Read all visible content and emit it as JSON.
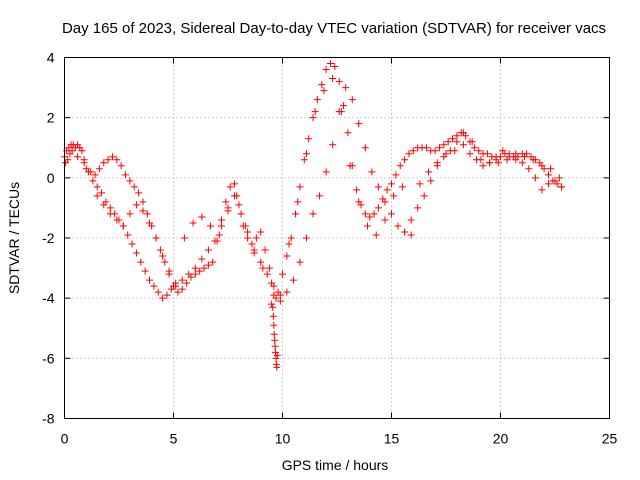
{
  "chart_data": {
    "type": "scatter",
    "title": "Day 165 of 2023, Sidereal Day-to-day VTEC variation (SDTVAR) for receiver vacs",
    "xlabel": "GPS time / hours",
    "ylabel": "SDTVAR / TECUs",
    "xlim": [
      0,
      25
    ],
    "ylim": [
      -8,
      4
    ],
    "xticks": [
      0,
      5,
      10,
      15,
      20,
      25
    ],
    "yticks": [
      -8,
      -6,
      -4,
      -2,
      0,
      2,
      4
    ],
    "xtick_labels": [
      "0",
      "5",
      "10",
      "15",
      "20",
      "25"
    ],
    "ytick_labels": [
      "-8",
      "-6",
      "-4",
      "-2",
      "0",
      "2",
      "4"
    ],
    "grid": true,
    "marker": "+",
    "color": "#ff0000",
    "series": [
      {
        "name": "SDTVAR",
        "x": [
          0.0,
          0.1,
          0.2,
          0.3,
          0.4,
          0.5,
          0.6,
          0.7,
          0.8,
          0.9,
          1.0,
          1.2,
          1.4,
          1.6,
          1.8,
          2.0,
          2.2,
          2.4,
          2.6,
          2.8,
          3.0,
          3.2,
          3.4,
          3.6,
          3.8,
          4.0,
          4.2,
          4.4,
          4.6,
          4.8,
          5.0,
          5.2,
          5.4,
          5.6,
          5.8,
          6.0,
          6.2,
          6.4,
          6.6,
          6.8,
          7.0,
          7.2,
          7.4,
          7.6,
          7.8,
          8.0,
          8.2,
          8.4,
          8.6,
          8.8,
          9.0,
          9.2,
          9.4,
          9.5,
          9.6,
          9.7,
          9.8,
          10.0,
          10.2,
          10.4,
          10.6,
          10.8,
          11.0,
          11.2,
          11.4,
          11.6,
          11.8,
          12.0,
          12.2,
          12.4,
          12.6,
          12.8,
          13.0,
          13.2,
          13.4,
          13.6,
          13.8,
          14.0,
          14.2,
          14.4,
          14.6,
          14.8,
          15.0,
          15.2,
          15.4,
          15.6,
          15.8,
          16.0,
          16.2,
          16.4,
          16.6,
          16.8,
          17.0,
          17.2,
          17.4,
          17.6,
          17.8,
          18.0,
          18.2,
          18.4,
          18.6,
          18.8,
          19.0,
          19.2,
          19.4,
          19.6,
          19.8,
          20.0,
          20.2,
          20.4,
          20.6,
          20.8,
          21.0,
          21.2,
          21.4,
          21.6,
          21.8,
          22.0,
          22.2,
          22.4,
          22.6,
          22.8,
          0.05,
          0.15,
          0.25,
          0.35,
          0.6,
          0.9,
          1.1,
          1.3,
          1.5,
          1.7,
          1.9,
          2.1,
          2.3,
          2.5,
          2.7,
          2.9,
          3.1,
          3.3,
          3.5,
          3.7,
          3.9,
          4.1,
          4.3,
          4.5,
          4.7,
          4.9,
          5.1,
          5.5,
          5.9,
          6.3,
          6.7,
          7.1,
          7.5,
          7.9,
          8.3,
          8.7,
          9.1,
          9.5,
          9.9,
          10.3,
          10.7,
          11.1,
          11.5,
          11.9,
          12.3,
          12.7,
          13.1,
          13.5,
          13.9,
          14.3,
          14.7,
          15.1,
          15.5,
          15.9,
          16.3,
          16.7,
          17.1,
          17.5,
          17.9,
          18.3,
          18.7,
          19.1,
          19.5,
          19.9,
          20.3,
          20.7,
          21.1,
          21.5,
          21.9,
          22.3,
          22.7,
          1.5,
          1.8,
          2.1,
          2.4,
          2.7,
          3.0,
          3.3,
          3.6,
          3.9,
          4.2,
          4.5,
          4.8,
          5.1,
          5.4,
          5.7,
          6.0,
          6.3,
          6.6,
          6.9,
          7.2,
          7.5,
          7.8,
          8.1,
          8.4,
          8.7,
          9.0,
          9.3,
          9.6,
          9.9,
          10.2,
          10.5,
          10.8,
          11.1,
          11.4,
          11.7,
          12.0,
          12.3,
          12.6,
          12.9,
          13.2,
          13.5,
          13.8,
          14.1,
          14.4,
          14.7,
          15.0,
          15.3,
          15.6,
          15.9,
          16.2,
          16.5,
          16.8,
          17.1,
          17.4,
          17.7,
          18.0,
          18.3,
          18.6,
          18.9,
          19.2,
          19.5,
          19.8,
          20.1,
          20.4,
          20.7,
          21.0,
          21.3,
          21.6,
          21.9,
          22.2,
          22.5,
          22.8,
          9.55,
          9.58,
          9.6,
          9.62,
          9.64,
          9.66,
          9.68,
          9.7,
          9.72,
          9.74,
          9.76
        ],
        "y": [
          0.7,
          0.9,
          1.0,
          1.1,
          1.1,
          1.0,
          1.1,
          1.0,
          0.9,
          0.6,
          0.3,
          0.2,
          0.1,
          0.3,
          0.5,
          0.6,
          0.7,
          0.6,
          0.4,
          0.1,
          -0.1,
          -0.3,
          -0.5,
          -0.8,
          -1.2,
          -1.6,
          -2.0,
          -2.4,
          -2.8,
          -3.2,
          -3.6,
          -3.8,
          -3.7,
          -3.5,
          -3.3,
          -3.2,
          -3.1,
          -3.0,
          -2.9,
          -2.8,
          -2.1,
          -1.4,
          -0.8,
          -0.3,
          -0.2,
          -0.9,
          -1.6,
          -2.0,
          -2.2,
          -2.0,
          -1.8,
          -2.4,
          -3.0,
          -3.5,
          -3.9,
          -4.0,
          -3.8,
          -3.2,
          -2.6,
          -2.0,
          -1.2,
          -0.3,
          0.6,
          1.3,
          2.0,
          2.6,
          3.1,
          3.6,
          3.8,
          3.7,
          3.2,
          2.4,
          1.5,
          0.4,
          -0.4,
          -0.9,
          -1.2,
          -1.3,
          -1.2,
          -1.0,
          -0.7,
          -0.4,
          -0.2,
          0.1,
          0.4,
          0.6,
          0.8,
          0.9,
          1.0,
          1.0,
          1.0,
          0.9,
          0.9,
          1.0,
          1.1,
          1.2,
          1.3,
          1.4,
          1.5,
          1.4,
          1.2,
          1.0,
          0.9,
          0.8,
          0.8,
          0.7,
          0.7,
          0.7,
          0.8,
          0.8,
          0.7,
          0.7,
          0.8,
          0.8,
          0.7,
          0.6,
          0.5,
          0.3,
          0.1,
          -0.1,
          -0.2,
          -0.3,
          0.5,
          0.6,
          0.8,
          0.9,
          0.7,
          0.5,
          0.2,
          -0.1,
          -0.3,
          -0.5,
          -0.8,
          -1.0,
          -1.2,
          -1.4,
          -1.6,
          -1.9,
          -2.2,
          -2.5,
          -2.8,
          -3.1,
          -3.4,
          -3.6,
          -3.8,
          -4.0,
          -3.9,
          -3.7,
          -3.5,
          -2.0,
          -1.5,
          -1.3,
          -1.6,
          -1.9,
          -1.1,
          -0.6,
          -1.6,
          -2.5,
          -3.0,
          -4.2,
          -4.1,
          -2.2,
          -0.8,
          0.8,
          2.2,
          2.9,
          3.3,
          2.2,
          0.4,
          -0.8,
          -1.6,
          -1.9,
          -1.4,
          -0.6,
          -0.3,
          -1.9,
          -0.2,
          0.2,
          0.5,
          0.8,
          0.9,
          1.5,
          1.2,
          0.6,
          0.5,
          0.5,
          0.6,
          0.8,
          0.7,
          0.6,
          0.4,
          0.3,
          0.0,
          -0.6,
          -0.9,
          -1.2,
          -1.4,
          -1.6,
          -1.2,
          -0.9,
          -1.1,
          -1.5,
          -2.0,
          -2.6,
          -3.1,
          -3.6,
          -3.4,
          -3.2,
          -3.0,
          -2.7,
          -2.4,
          -2.1,
          -1.6,
          -1.0,
          -0.6,
          -1.2,
          -1.8,
          -2.4,
          -2.8,
          -3.2,
          -3.6,
          -3.9,
          -3.8,
          -3.4,
          -2.8,
          -2.0,
          -1.2,
          -0.6,
          0.2,
          1.1,
          2.2,
          3.0,
          2.6,
          1.8,
          1.0,
          0.2,
          -0.3,
          -0.8,
          -1.2,
          -1.6,
          -1.8,
          -1.4,
          -1.0,
          -0.6,
          -0.1,
          0.4,
          0.7,
          0.9,
          1.2,
          1.1,
          0.8,
          0.6,
          0.4,
          0.5,
          0.6,
          0.9,
          0.7,
          0.6,
          0.5,
          0.3,
          0.0,
          -0.4,
          -0.2,
          -0.1,
          -0.3,
          -4.3,
          -4.6,
          -4.9,
          -5.2,
          -5.4,
          -5.6,
          -5.8,
          -6.0,
          -6.2,
          -6.3,
          -5.9
        ]
      }
    ]
  }
}
